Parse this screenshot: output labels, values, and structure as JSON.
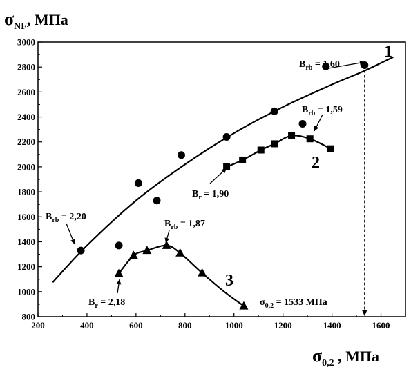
{
  "chart_data": {
    "type": "scatter",
    "xlabel": {
      "main": "σ",
      "sub": "0,2",
      "unit": " , МПа"
    },
    "ylabel": {
      "main": "σ",
      "sub": "NF",
      "unit": ", МПа"
    },
    "xlim": [
      200,
      1700
    ],
    "ylim": [
      800,
      3000
    ],
    "xticks": [
      200,
      400,
      600,
      800,
      1000,
      1200,
      1400,
      1600
    ],
    "yticks": [
      800,
      1000,
      1200,
      1400,
      1600,
      1800,
      2000,
      2200,
      2400,
      2600,
      2800,
      3000
    ],
    "grid": false,
    "series": [
      {
        "name": "1",
        "marker": "circle",
        "points": [
          [
            375,
            1330
          ],
          [
            530,
            1370
          ],
          [
            610,
            1870
          ],
          [
            685,
            1730
          ],
          [
            785,
            2095
          ],
          [
            970,
            2240
          ],
          [
            1165,
            2445
          ],
          [
            1280,
            2345
          ],
          [
            1375,
            2805
          ],
          [
            1533,
            2815
          ]
        ],
        "curve": [
          [
            260,
            1075
          ],
          [
            400,
            1370
          ],
          [
            600,
            1730
          ],
          [
            800,
            2020
          ],
          [
            1000,
            2270
          ],
          [
            1200,
            2480
          ],
          [
            1400,
            2660
          ],
          [
            1533,
            2770
          ],
          [
            1650,
            2880
          ]
        ]
      },
      {
        "name": "2",
        "marker": "square",
        "points": [
          [
            970,
            2000
          ],
          [
            1035,
            2055
          ],
          [
            1110,
            2135
          ],
          [
            1165,
            2185
          ],
          [
            1235,
            2250
          ],
          [
            1310,
            2225
          ],
          [
            1395,
            2145
          ]
        ],
        "curve": [
          [
            970,
            2000
          ],
          [
            1035,
            2055
          ],
          [
            1110,
            2135
          ],
          [
            1165,
            2185
          ],
          [
            1235,
            2250
          ],
          [
            1310,
            2225
          ],
          [
            1395,
            2145
          ]
        ]
      },
      {
        "name": "3",
        "marker": "triangle",
        "points": [
          [
            530,
            1145
          ],
          [
            590,
            1290
          ],
          [
            645,
            1330
          ],
          [
            725,
            1370
          ],
          [
            780,
            1310
          ],
          [
            870,
            1150
          ],
          [
            1040,
            885
          ]
        ],
        "curve": [
          [
            530,
            1145
          ],
          [
            590,
            1290
          ],
          [
            645,
            1330
          ],
          [
            725,
            1370
          ],
          [
            780,
            1310
          ],
          [
            870,
            1150
          ],
          [
            960,
            1000
          ],
          [
            1040,
            885
          ]
        ]
      }
    ],
    "annotations": [
      {
        "main": "B",
        "sub": "rb",
        "value": " = 1,60"
      },
      {
        "main": "B",
        "sub": "rb",
        "value": " = 1,59"
      },
      {
        "main": "B",
        "sub": "r",
        "value": " = 1,90"
      },
      {
        "main": "B",
        "sub": "rb",
        "value": " = 2,20"
      },
      {
        "main": "B",
        "sub": "rb",
        "value": " = 1,87"
      },
      {
        "main": "B",
        "sub": "r",
        "value": " = 2,18"
      },
      {
        "main": "σ",
        "sub": "0,2",
        "value": " = 1533 МПа"
      }
    ],
    "curve_labels": [
      "1",
      "2",
      "3"
    ],
    "guide_line_x": 1533
  }
}
